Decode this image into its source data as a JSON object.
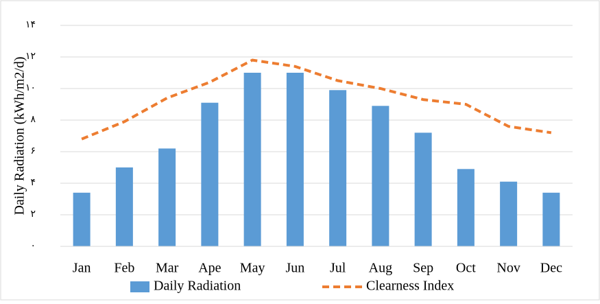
{
  "chart_data": {
    "type": "bar-line",
    "y_label": "Daily Radiation (kWh/m2/d)",
    "categories": [
      "Jan",
      "Feb",
      "Mar",
      "Ape",
      "May",
      "Jun",
      "Jul",
      "Aug",
      "Sep",
      "Oct",
      "Nov",
      "Dec"
    ],
    "series": [
      {
        "name": "Daily Radiation",
        "type": "bar",
        "color": "#5b9bd5",
        "values": [
          3.4,
          5.0,
          6.2,
          9.1,
          11.0,
          11.0,
          9.9,
          8.9,
          7.2,
          4.9,
          4.1,
          3.4
        ]
      },
      {
        "name": "Clearness Index",
        "type": "line",
        "color": "#ed7d31",
        "values": [
          6.8,
          7.9,
          9.4,
          10.4,
          11.8,
          11.4,
          10.5,
          10.0,
          9.3,
          9.0,
          7.6,
          7.2
        ]
      }
    ],
    "ylim": [
      0,
      14
    ],
    "yticks": [
      {
        "value": 0,
        "label": "۰"
      },
      {
        "value": 2,
        "label": "۲"
      },
      {
        "value": 4,
        "label": "۴"
      },
      {
        "value": 6,
        "label": "۶"
      },
      {
        "value": 8,
        "label": "۸"
      },
      {
        "value": 10,
        "label": "۱۰"
      },
      {
        "value": 12,
        "label": "۱۲"
      },
      {
        "value": 14,
        "label": "۱۴"
      }
    ],
    "grid": true,
    "legend": "bottom"
  }
}
